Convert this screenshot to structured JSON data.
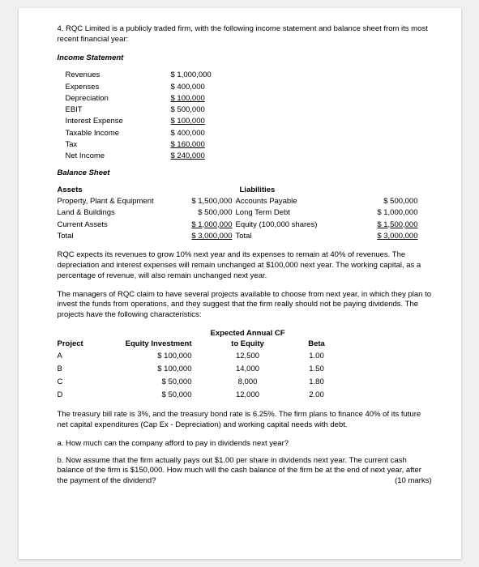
{
  "intro": "4. RQC Limited is a publicly traded firm, with the following income statement and balance sheet from its most recent financial year:",
  "income_title": "Income Statement",
  "income": {
    "rows": [
      {
        "label": "Revenues",
        "value": "$ 1,000,000",
        "underline": false
      },
      {
        "label": "Expenses",
        "value": "$ 400,000",
        "underline": false
      },
      {
        "label": "Depreciation",
        "value": "$ 100,000",
        "underline": true
      },
      {
        "label": "EBIT",
        "value": "$ 500,000",
        "underline": false
      },
      {
        "label": "Interest Expense",
        "value": "$ 100,000",
        "underline": true
      },
      {
        "label": "Taxable Income",
        "value": "$ 400,000",
        "underline": false
      },
      {
        "label": "Tax",
        "value": "$ 160,000",
        "underline": true
      },
      {
        "label": "Net Income",
        "value": "$ 240,000",
        "underline": true
      }
    ]
  },
  "balance_title": "Balance Sheet",
  "balance": {
    "left_head": "Assets",
    "right_head": "Liabilities",
    "rows": [
      {
        "l1": "Property, Plant & Equipment",
        "l2": "$ 1,500,000",
        "l3": "Accounts Payable",
        "l4": "$ 500,000",
        "u2": false,
        "u4": false
      },
      {
        "l1": "Land & Buildings",
        "l2": "$ 500,000",
        "l3": "Long Term Debt",
        "l4": "$ 1,000,000",
        "u2": false,
        "u4": false
      },
      {
        "l1": "Current Assets",
        "l2": "$ 1,000,000",
        "l3": "Equity (100,000 shares)",
        "l4": "$ 1,500,000",
        "u2": true,
        "u4": true
      },
      {
        "l1": "Total",
        "l2": "$ 3,000,000",
        "l3": "Total",
        "l4": "$ 3,000,000",
        "u2": true,
        "u4": true
      }
    ]
  },
  "para1": "RQC expects its revenues to grow 10% next year and its expenses to remain at 40% of revenues. The depreciation and interest expenses will remain unchanged at $100,000 next year. The working capital, as a percentage of revenue, will also remain unchanged next year.",
  "para2": "The managers of RQC claim to have several projects available to choose from next year, in which they plan to invest the funds from operations, and they suggest that the firm really should not be paying dividends. The projects have the following characteristics:",
  "projects": {
    "headers": {
      "c1": "Project",
      "c2": "Equity Investment",
      "c3a": "Expected Annual CF",
      "c3b": "to Equity",
      "c4": "Beta"
    },
    "rows": [
      {
        "p": "A",
        "inv": "$ 100,000",
        "cf": "12,500",
        "beta": "1.00"
      },
      {
        "p": "B",
        "inv": "$ 100,000",
        "cf": "14,000",
        "beta": "1.50"
      },
      {
        "p": "C",
        "inv": "$ 50,000",
        "cf": "8,000",
        "beta": "1.80"
      },
      {
        "p": "D",
        "inv": "$ 50,000",
        "cf": "12,000",
        "beta": "2.00"
      }
    ]
  },
  "para3": "The treasury bill rate is 3%, and the treasury bond rate is 6.25%. The firm plans to finance 40% of its future net capital expenditures (Cap Ex - Depreciation) and working capital needs with debt.",
  "qa": "a. How much can the company afford to pay in dividends next year?",
  "qb": "b. Now assume that the firm actually pays out $1.00 per share in dividends next year. The current cash balance of the firm is $150,000. How much will the cash balance of the firm be at the end of next year, after the payment of the dividend?",
  "marks": "(10 marks)"
}
